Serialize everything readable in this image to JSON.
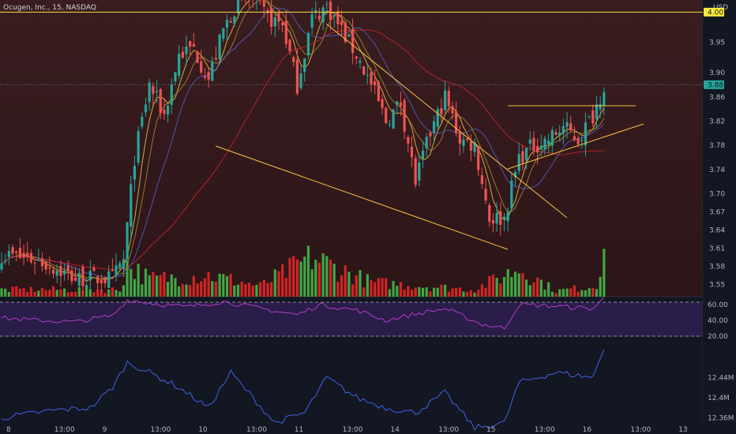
{
  "header": {
    "symbol_title": "Ocugen, Inc., 15, NASDAQ",
    "currency": "USD"
  },
  "price_axis": {
    "ticks": [
      "3.95",
      "3.90",
      "3.86",
      "3.82",
      "3.78",
      "3.74",
      "3.70",
      "3.67",
      "3.64",
      "3.61",
      "3.58",
      "3.55"
    ],
    "last_price_label": "3.88",
    "alert_level_label": "4.00"
  },
  "rsi_axis": {
    "ticks": [
      "60.00",
      "40.00",
      "20.00"
    ]
  },
  "indicator_axis": {
    "ticks": [
      "12.44M",
      "12.4M",
      "12.36M"
    ]
  },
  "time_axis": {
    "labels": [
      "8",
      "13:00",
      "9",
      "13:00",
      "10",
      "13:00",
      "11",
      "13:00",
      "14",
      "13:00",
      "15",
      "13:00",
      "16",
      "13:00",
      "13"
    ]
  },
  "colors": {
    "background": "#131722",
    "up_candle": "#26a69a",
    "down_candle": "#ef5350",
    "up_volume": "#3fa845",
    "down_volume": "#d32424",
    "trendline": "#f5c342",
    "rsi_line": "#b23cc8",
    "rsi_band": "#2a1d49",
    "indicator_line": "#3f63e6",
    "last_price_badge": "#26a69a",
    "alert_badge": "#ffeb3b"
  },
  "chart_data": {
    "type": "candlestick",
    "title": "Ocugen, Inc., 15, NASDAQ",
    "interval": "15",
    "ylabel": "USD",
    "ylim": [
      3.53,
      4.02
    ],
    "last_price": 3.88,
    "horizontal_level": 4.0,
    "rsi_range": [
      20,
      70
    ],
    "rsi_bands": [
      70,
      30
    ],
    "indicator_range": [
      12.35,
      12.5
    ],
    "price_anchors": [
      {
        "x": 0,
        "y": 3.6
      },
      {
        "x": 10,
        "y": 3.59
      },
      {
        "x": 20,
        "y": 3.56
      },
      {
        "x": 30,
        "y": 3.56
      },
      {
        "x": 33,
        "y": 3.59
      },
      {
        "x": 36,
        "y": 3.76
      },
      {
        "x": 40,
        "y": 3.88
      },
      {
        "x": 44,
        "y": 3.83
      },
      {
        "x": 48,
        "y": 3.93
      },
      {
        "x": 52,
        "y": 3.94
      },
      {
        "x": 56,
        "y": 3.89
      },
      {
        "x": 60,
        "y": 3.97
      },
      {
        "x": 64,
        "y": 4.02
      },
      {
        "x": 68,
        "y": 4.02
      },
      {
        "x": 72,
        "y": 3.99
      },
      {
        "x": 76,
        "y": 3.98
      },
      {
        "x": 80,
        "y": 3.88
      },
      {
        "x": 84,
        "y": 3.99
      },
      {
        "x": 88,
        "y": 4.01
      },
      {
        "x": 92,
        "y": 3.97
      },
      {
        "x": 96,
        "y": 3.93
      },
      {
        "x": 100,
        "y": 3.88
      },
      {
        "x": 104,
        "y": 3.82
      },
      {
        "x": 108,
        "y": 3.85
      },
      {
        "x": 112,
        "y": 3.72
      },
      {
        "x": 116,
        "y": 3.8
      },
      {
        "x": 120,
        "y": 3.86
      },
      {
        "x": 124,
        "y": 3.79
      },
      {
        "x": 128,
        "y": 3.78
      },
      {
        "x": 132,
        "y": 3.66
      },
      {
        "x": 136,
        "y": 3.66
      },
      {
        "x": 140,
        "y": 3.76
      },
      {
        "x": 144,
        "y": 3.78
      },
      {
        "x": 148,
        "y": 3.79
      },
      {
        "x": 152,
        "y": 3.81
      },
      {
        "x": 156,
        "y": 3.79
      },
      {
        "x": 160,
        "y": 3.83
      },
      {
        "x": 163,
        "y": 3.88
      }
    ],
    "volume_anchors": [
      {
        "x": 0,
        "y": 0.1
      },
      {
        "x": 32,
        "y": 0.1
      },
      {
        "x": 34,
        "y": 0.45
      },
      {
        "x": 40,
        "y": 0.25
      },
      {
        "x": 56,
        "y": 0.3
      },
      {
        "x": 70,
        "y": 0.15
      },
      {
        "x": 84,
        "y": 0.55
      },
      {
        "x": 100,
        "y": 0.2
      },
      {
        "x": 128,
        "y": 0.1
      },
      {
        "x": 140,
        "y": 0.4
      },
      {
        "x": 150,
        "y": 0.08
      },
      {
        "x": 161,
        "y": 0.15
      },
      {
        "x": 162,
        "y": 0.5
      },
      {
        "x": 163,
        "y": 1.0
      }
    ],
    "rsi_anchors": [
      {
        "x": 0,
        "y": 43
      },
      {
        "x": 10,
        "y": 40
      },
      {
        "x": 20,
        "y": 38
      },
      {
        "x": 30,
        "y": 46
      },
      {
        "x": 34,
        "y": 66
      },
      {
        "x": 40,
        "y": 62
      },
      {
        "x": 50,
        "y": 57
      },
      {
        "x": 60,
        "y": 64
      },
      {
        "x": 70,
        "y": 55
      },
      {
        "x": 80,
        "y": 47
      },
      {
        "x": 86,
        "y": 60
      },
      {
        "x": 96,
        "y": 53
      },
      {
        "x": 104,
        "y": 40
      },
      {
        "x": 112,
        "y": 48
      },
      {
        "x": 120,
        "y": 55
      },
      {
        "x": 130,
        "y": 35
      },
      {
        "x": 136,
        "y": 30
      },
      {
        "x": 140,
        "y": 60
      },
      {
        "x": 150,
        "y": 58
      },
      {
        "x": 160,
        "y": 55
      },
      {
        "x": 163,
        "y": 68
      }
    ],
    "indicator_anchors": [
      {
        "x": 0,
        "y": 12.36
      },
      {
        "x": 14,
        "y": 12.375
      },
      {
        "x": 24,
        "y": 12.38
      },
      {
        "x": 30,
        "y": 12.42
      },
      {
        "x": 34,
        "y": 12.47
      },
      {
        "x": 40,
        "y": 12.45
      },
      {
        "x": 48,
        "y": 12.42
      },
      {
        "x": 56,
        "y": 12.38
      },
      {
        "x": 62,
        "y": 12.45
      },
      {
        "x": 68,
        "y": 12.4
      },
      {
        "x": 74,
        "y": 12.35
      },
      {
        "x": 82,
        "y": 12.37
      },
      {
        "x": 88,
        "y": 12.44
      },
      {
        "x": 96,
        "y": 12.4
      },
      {
        "x": 104,
        "y": 12.38
      },
      {
        "x": 112,
        "y": 12.37
      },
      {
        "x": 120,
        "y": 12.41
      },
      {
        "x": 128,
        "y": 12.34
      },
      {
        "x": 136,
        "y": 12.35
      },
      {
        "x": 140,
        "y": 12.43
      },
      {
        "x": 150,
        "y": 12.45
      },
      {
        "x": 160,
        "y": 12.44
      },
      {
        "x": 163,
        "y": 12.5
      }
    ],
    "ma_fast_lag": 4,
    "ma_slow_lag": 14
  }
}
